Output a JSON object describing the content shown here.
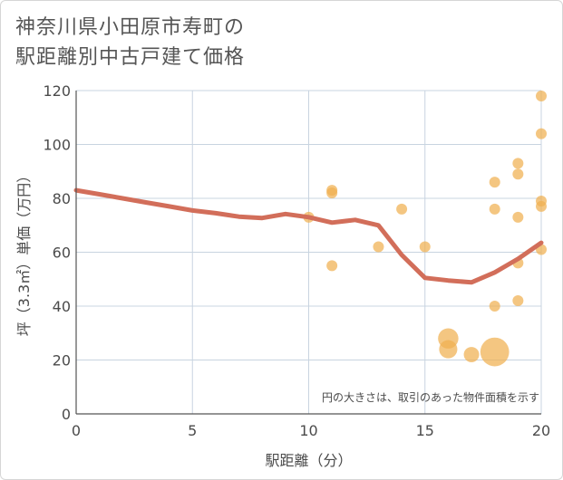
{
  "title_lines": [
    "神奈川県小田原市寿町の",
    "駅距離別中古戸建て価格"
  ],
  "chart_data": {
    "type": "scatter",
    "title": "神奈川県小田原市寿町の駅距離別中古戸建て価格",
    "xlabel": "駅距離（分）",
    "ylabel": "坪（3.3㎡）単価（万円）",
    "xlim": [
      0,
      20
    ],
    "ylim": [
      0,
      120
    ],
    "xticks": [
      0,
      5,
      10,
      15,
      20
    ],
    "yticks": [
      0,
      20,
      40,
      60,
      80,
      100,
      120
    ],
    "grid": true,
    "note": "円の大きさは、取引のあった物件面積を示す",
    "points": [
      {
        "x": 10,
        "y": 73,
        "size": 1
      },
      {
        "x": 11,
        "y": 83,
        "size": 1
      },
      {
        "x": 11,
        "y": 82,
        "size": 1
      },
      {
        "x": 11,
        "y": 55,
        "size": 1
      },
      {
        "x": 13,
        "y": 62,
        "size": 1
      },
      {
        "x": 14,
        "y": 76,
        "size": 1
      },
      {
        "x": 15,
        "y": 62,
        "size": 1
      },
      {
        "x": 16,
        "y": 28,
        "size": 3.5
      },
      {
        "x": 16,
        "y": 24,
        "size": 2.8
      },
      {
        "x": 17,
        "y": 22,
        "size": 2
      },
      {
        "x": 18,
        "y": 23,
        "size": 7
      },
      {
        "x": 18,
        "y": 86,
        "size": 1
      },
      {
        "x": 18,
        "y": 76,
        "size": 1
      },
      {
        "x": 18,
        "y": 40,
        "size": 1
      },
      {
        "x": 19,
        "y": 93,
        "size": 1
      },
      {
        "x": 19,
        "y": 89,
        "size": 1
      },
      {
        "x": 19,
        "y": 73,
        "size": 1
      },
      {
        "x": 19,
        "y": 56,
        "size": 1
      },
      {
        "x": 19,
        "y": 42,
        "size": 1
      },
      {
        "x": 20,
        "y": 118,
        "size": 1
      },
      {
        "x": 20,
        "y": 104,
        "size": 1
      },
      {
        "x": 20,
        "y": 79,
        "size": 1
      },
      {
        "x": 20,
        "y": 77,
        "size": 1
      },
      {
        "x": 20,
        "y": 61,
        "size": 1
      }
    ],
    "trend_line": {
      "x": [
        0,
        1,
        2,
        3,
        4,
        5,
        6,
        7,
        8,
        9,
        10,
        11,
        12,
        13,
        14,
        15,
        16,
        17,
        18,
        19,
        20
      ],
      "y": [
        83,
        81.5,
        80,
        78.5,
        77,
        75.5,
        74.5,
        73.2,
        72.7,
        74.2,
        73,
        71,
        72,
        70,
        59,
        50.5,
        49.5,
        48.8,
        52.5,
        57.5,
        63.5
      ]
    },
    "colors": {
      "points": "#f0b050",
      "trend": "#d26e5a",
      "grid": "#c8d4e0",
      "axis": "#555555"
    }
  }
}
